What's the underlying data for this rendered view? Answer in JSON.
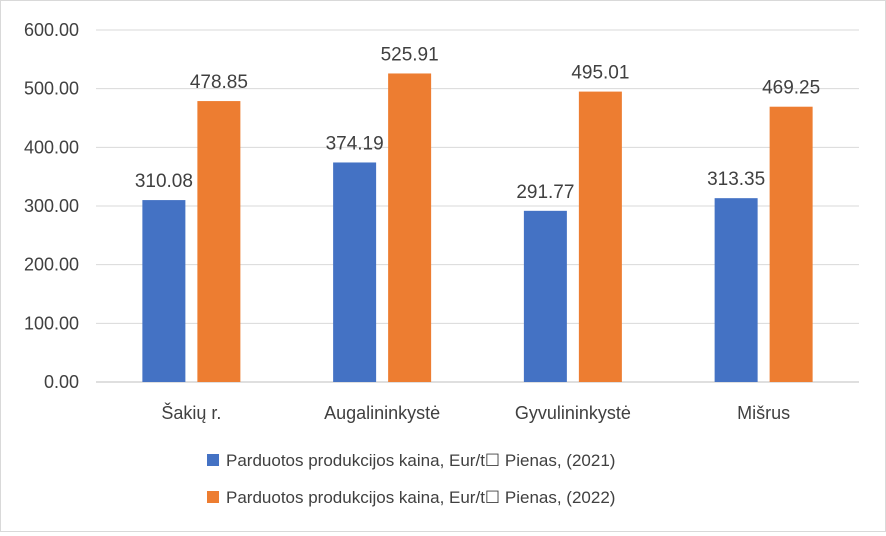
{
  "chart_data": {
    "type": "bar",
    "categories": [
      "Šakių r.",
      "Augalininkystė",
      "Gyvulininkystė",
      "Mišrus"
    ],
    "series": [
      {
        "name": "Parduotos produkcijos kaina, Eur/t☐ Pienas, (2021)",
        "color": "#4472C4",
        "values": [
          310.08,
          374.19,
          291.77,
          313.35
        ]
      },
      {
        "name": "Parduotos produkcijos kaina, Eur/t☐ Pienas, (2022)",
        "color": "#ED7D31",
        "values": [
          478.85,
          525.91,
          495.01,
          469.25
        ]
      }
    ],
    "ylim": [
      0,
      600
    ],
    "yticks": [
      "0.00",
      "100.00",
      "200.00",
      "300.00",
      "400.00",
      "500.00",
      "600.00"
    ],
    "data_labels": [
      [
        "310.08",
        "374.19",
        "291.77",
        "313.35"
      ],
      [
        "478.85",
        "525.91",
        "495.01",
        "469.25"
      ]
    ],
    "grid": true,
    "legend_position": "bottom"
  }
}
